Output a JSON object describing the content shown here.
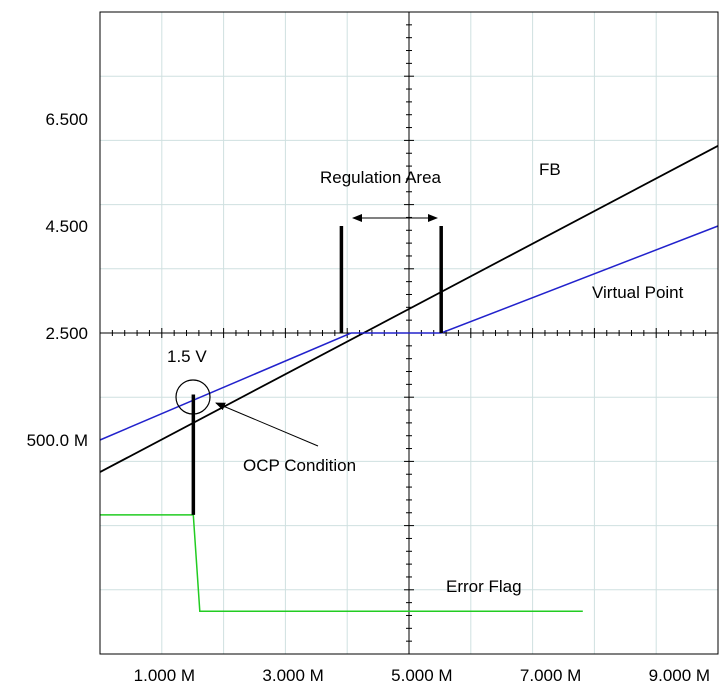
{
  "chart_data": {
    "type": "line",
    "title": "",
    "xlabel": "",
    "ylabel": "",
    "xlim": [
      0,
      9.6
    ],
    "ylim": [
      -3.5,
      8.5
    ],
    "grid": true,
    "x_ticks": [
      {
        "value": 1.0,
        "label": "1.000 M"
      },
      {
        "value": 3.0,
        "label": "3.000 M"
      },
      {
        "value": 5.0,
        "label": "5.000 M"
      },
      {
        "value": 7.0,
        "label": "7.000 M"
      },
      {
        "value": 9.0,
        "label": "9.000 M"
      }
    ],
    "y_ticks": [
      {
        "value": 6.5,
        "label": "6.500"
      },
      {
        "value": 4.5,
        "label": "4.500"
      },
      {
        "value": 2.5,
        "label": "2.500"
      },
      {
        "value": 0.5,
        "label": "500.0 M"
      }
    ],
    "series": [
      {
        "name": "FB",
        "color": "#000000",
        "points": [
          [
            0,
            -0.1
          ],
          [
            9.6,
            6.0
          ]
        ]
      },
      {
        "name": "Virtual Point",
        "color": "#2222cc",
        "points": [
          [
            0,
            0.5
          ],
          [
            3.9,
            2.5
          ],
          [
            5.3,
            2.5
          ],
          [
            9.6,
            4.5
          ]
        ]
      },
      {
        "name": "Error Flag",
        "color": "#22cc22",
        "points": [
          [
            0,
            -0.9
          ],
          [
            1.45,
            -0.9
          ],
          [
            1.55,
            -2.7
          ],
          [
            7.5,
            -2.7
          ]
        ]
      }
    ],
    "vertical_markers": [
      {
        "x": 1.45,
        "y_from": -0.9,
        "y_to": 1.35
      },
      {
        "x": 3.75,
        "y_from": 2.5,
        "y_to": 4.5
      },
      {
        "x": 5.3,
        "y_from": 2.5,
        "y_to": 4.5
      }
    ],
    "annotations": {
      "regulation_area": "Regulation Area",
      "fb": "FB",
      "virtual_point": "Virtual Point",
      "voltage": "1.5 V",
      "ocp_condition": "OCP Condition",
      "error_flag": "Error Flag"
    }
  }
}
